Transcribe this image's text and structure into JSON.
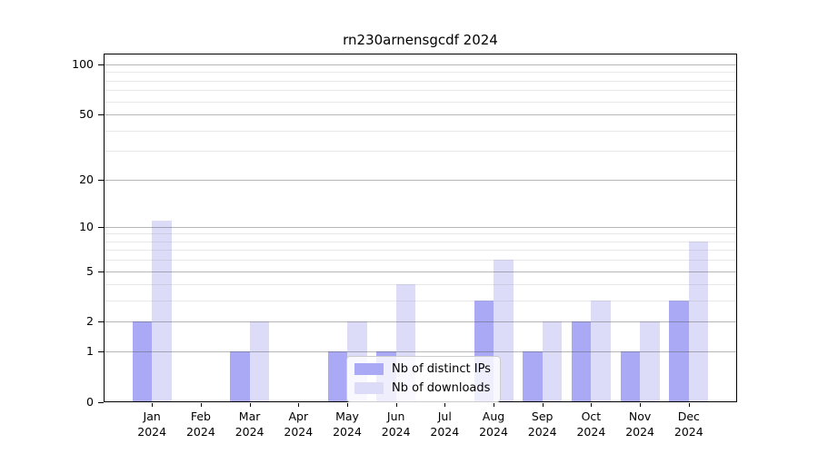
{
  "chart_data": {
    "type": "bar",
    "title": "rn230arnensgcdf 2024",
    "categories": [
      "Jan",
      "Feb",
      "Mar",
      "Apr",
      "May",
      "Jun",
      "Jul",
      "Aug",
      "Sep",
      "Oct",
      "Nov",
      "Dec"
    ],
    "year": "2024",
    "series": [
      {
        "name": "Nb of distinct IPs",
        "color": "#a9a9f5",
        "values": [
          2,
          0,
          1,
          0,
          1,
          1,
          0,
          3,
          1,
          2,
          1,
          3
        ]
      },
      {
        "name": "Nb of downloads",
        "color": "#dcdcf9",
        "values": [
          11,
          0,
          2,
          0,
          2,
          4,
          0,
          6,
          2,
          3,
          2,
          8
        ]
      }
    ],
    "y_scale": "log10(1+value)",
    "ylim": [
      0,
      116
    ],
    "yticks": [
      0,
      1,
      2,
      5,
      10,
      20,
      50,
      100
    ],
    "yticks_minor": [
      3,
      4,
      6,
      7,
      8,
      9,
      30,
      40,
      60,
      70,
      80,
      90
    ],
    "grid": true,
    "legend_position": "lower center inside plot"
  }
}
